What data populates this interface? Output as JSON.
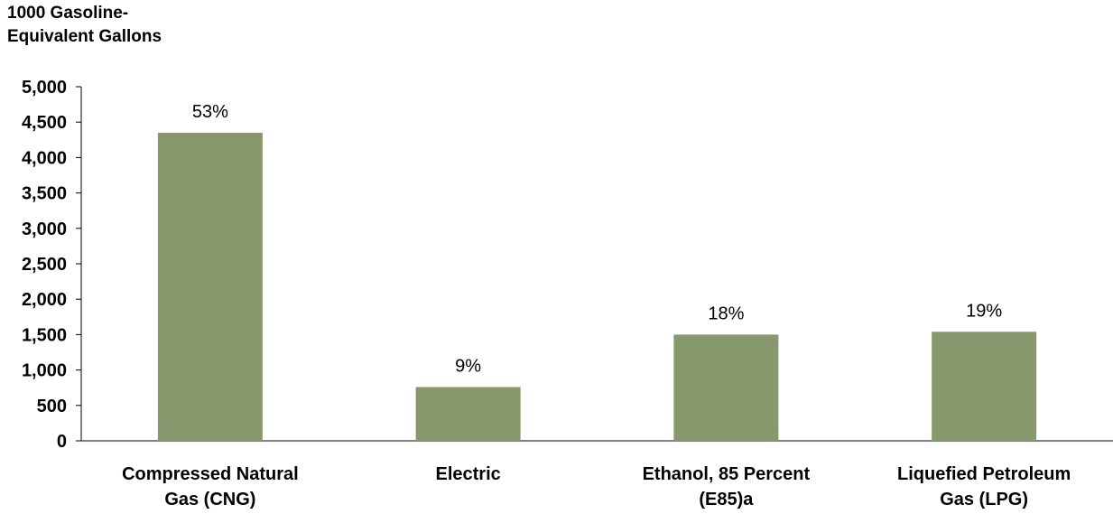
{
  "chart_data": {
    "type": "bar",
    "ylabel_lines": [
      "1000  Gasoline-",
      "Equivalent Gallons"
    ],
    "xlabel": "",
    "categories": [
      [
        "Compressed Natural",
        "Gas (CNG)"
      ],
      [
        "Electric"
      ],
      [
        "Ethanol, 85 Percent",
        "(E85)a"
      ],
      [
        "Liquefied Petroleum",
        "Gas (LPG)"
      ]
    ],
    "values": [
      4350,
      760,
      1500,
      1540
    ],
    "data_labels": [
      "53%",
      "9%",
      "18%",
      "19%"
    ],
    "ylim": [
      0,
      5000
    ],
    "yticks": [
      0,
      500,
      1000,
      1500,
      2000,
      2500,
      3000,
      3500,
      4000,
      4500,
      5000
    ],
    "ytick_labels": [
      "0",
      "500",
      "1,000",
      "1,500",
      "2,000",
      "2,500",
      "3,000",
      "3,500",
      "4,000",
      "4,500",
      "5,000"
    ],
    "bar_color": "#87996c",
    "grid": false,
    "legend": "none"
  }
}
